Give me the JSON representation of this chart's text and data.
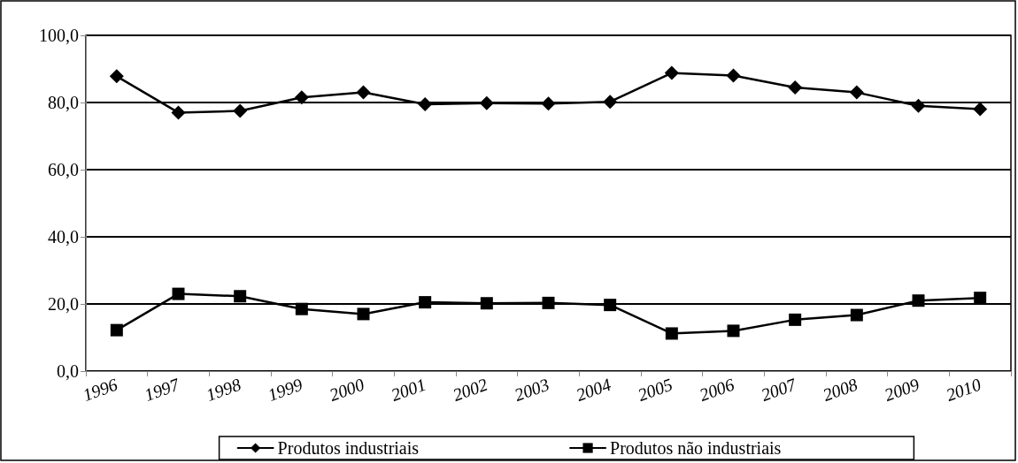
{
  "chart_data": {
    "type": "line",
    "categories": [
      "1996",
      "1997",
      "1998",
      "1999",
      "2000",
      "2001",
      "2002",
      "2003",
      "2004",
      "2005",
      "2006",
      "2007",
      "2008",
      "2009",
      "2010"
    ],
    "series": [
      {
        "name": "Produtos industriais",
        "color": "#000000",
        "marker": "diamond",
        "values": [
          87.8,
          77.0,
          77.5,
          81.5,
          83.0,
          79.5,
          79.8,
          79.7,
          80.2,
          88.8,
          88.0,
          84.5,
          83.0,
          79.0,
          78.0
        ]
      },
      {
        "name": "Produtos não industriais",
        "color": "#000000",
        "marker": "square",
        "values": [
          12.2,
          23.0,
          22.3,
          18.5,
          17.0,
          20.5,
          20.2,
          20.3,
          19.7,
          11.2,
          12.0,
          15.3,
          16.7,
          21.0,
          21.8
        ]
      }
    ],
    "ylim": [
      0,
      100
    ],
    "yticks": [
      {
        "value": 0,
        "label": "0,0"
      },
      {
        "value": 20,
        "label": "20,0"
      },
      {
        "value": 40,
        "label": "40,0"
      },
      {
        "value": 60,
        "label": "60,0"
      },
      {
        "value": 80,
        "label": "80,0"
      },
      {
        "value": 100,
        "label": "100,0"
      }
    ],
    "grid": "y",
    "legend": "bottom",
    "line_style": "solid"
  }
}
